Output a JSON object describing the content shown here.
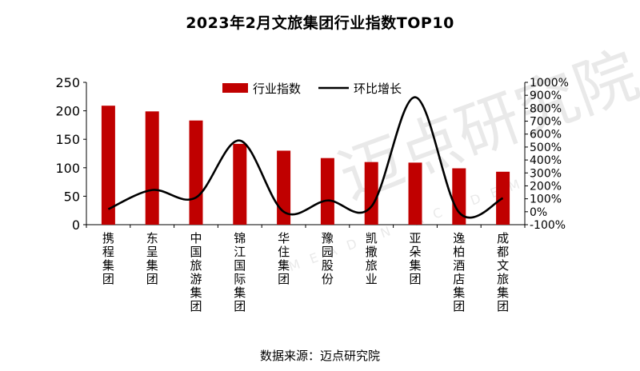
{
  "chart_data": {
    "type": "bar",
    "title": "2023年2月文旅集团行业指数TOP10",
    "categories": [
      "携程集团",
      "东呈集团",
      "中国旅游集团",
      "锦江国际集团",
      "华住集团",
      "豫园股份",
      "凯撒旅业",
      "亚朵集团",
      "逸柏酒店集团",
      "成都文旅集团"
    ],
    "series": [
      {
        "name": "行业指数",
        "type": "bar",
        "axis": "left",
        "color": "#c00000",
        "values": [
          209,
          199,
          183,
          142,
          130,
          117,
          110,
          109,
          99,
          93
        ]
      },
      {
        "name": "环比增长",
        "type": "line",
        "axis": "right",
        "color": "#000000",
        "values": [
          0.2,
          1.68,
          1.1,
          5.5,
          0.0,
          0.87,
          0.4,
          8.85,
          -0.05,
          1.05
        ]
      }
    ],
    "y_left": {
      "min": 0,
      "max": 250,
      "ticks": [
        0,
        50,
        100,
        150,
        200,
        250
      ]
    },
    "y_right": {
      "min": -1,
      "max": 10,
      "ticks": [
        -1,
        0,
        1,
        2,
        3,
        4,
        5,
        6,
        7,
        8,
        9,
        10
      ],
      "tick_labels": [
        "-100%",
        "0%",
        "100%",
        "200%",
        "300%",
        "400%",
        "500%",
        "600%",
        "700%",
        "800%",
        "900%",
        "1000%"
      ]
    },
    "legend_position": "top-center",
    "grid": false
  },
  "source_text": "数据来源：迈点研究院",
  "watermark": {
    "text": "迈点研究院",
    "subtext": "MEADIN ACADEMY"
  }
}
